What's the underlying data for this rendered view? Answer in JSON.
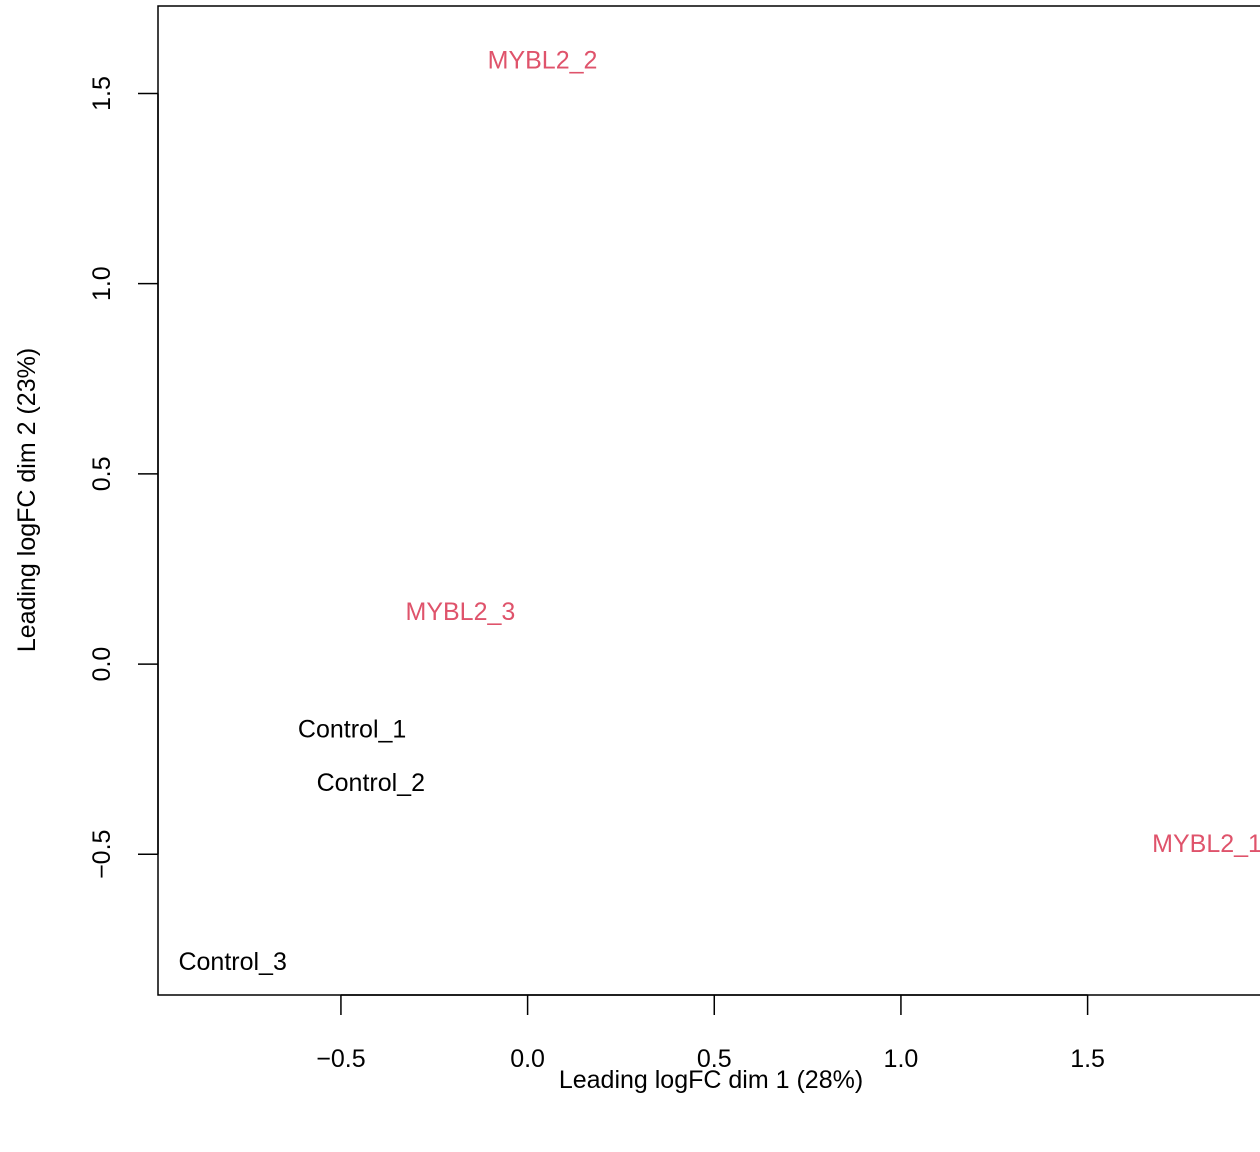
{
  "chart_data": {
    "type": "scatter",
    "title": "",
    "xlabel": "Leading logFC dim 1 (28%)",
    "ylabel": "Leading logFC dim 2 (23%)",
    "xlim": [
      -0.99,
      2.01
    ],
    "ylim": [
      -0.87,
      1.73
    ],
    "x_ticks": [
      -0.5,
      0.0,
      0.5,
      1.0,
      1.5
    ],
    "x_tick_labels": [
      "−0.5",
      "0.0",
      "0.5",
      "1.0",
      "1.5"
    ],
    "y_ticks": [
      -0.5,
      0.0,
      0.5,
      1.0,
      1.5
    ],
    "y_tick_labels": [
      "−0.5",
      "0.0",
      "0.5",
      "1.0",
      "1.5"
    ],
    "grid": false,
    "legend": "none",
    "points": [
      {
        "label": "MYBL2_2",
        "x": 0.04,
        "y": 1.59,
        "group": "MYBL2"
      },
      {
        "label": "MYBL2_3",
        "x": -0.18,
        "y": 0.14,
        "group": "MYBL2"
      },
      {
        "label": "Control_1",
        "x": -0.47,
        "y": -0.17,
        "group": "Control"
      },
      {
        "label": "Control_2",
        "x": -0.42,
        "y": -0.31,
        "group": "Control"
      },
      {
        "label": "MYBL2_1",
        "x": 1.82,
        "y": -0.47,
        "group": "MYBL2"
      },
      {
        "label": "Control_3",
        "x": -0.79,
        "y": -0.78,
        "group": "Control"
      }
    ],
    "colors": {
      "Control": "#000000",
      "MYBL2": "#DF536B"
    }
  }
}
